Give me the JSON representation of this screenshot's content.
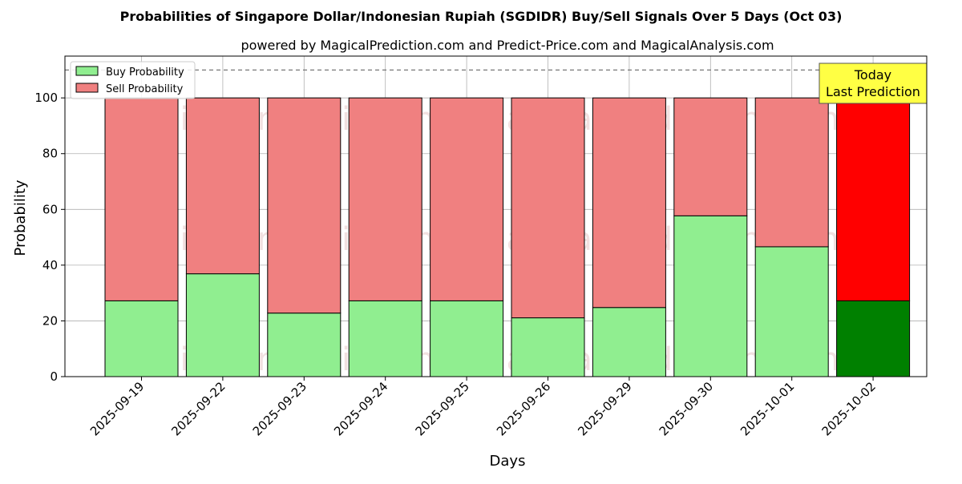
{
  "title": "Probabilities of Singapore Dollar/Indonesian Rupiah (SGDIDR) Buy/Sell Signals Over 5 Days (Oct 03)",
  "subtitle": "powered by MagicalPrediction.com and Predict-Price.com and MagicalAnalysis.com",
  "watermarks": [
    "MagicalAnalysis.com",
    "MagicalPrediction.com"
  ],
  "today_box": {
    "line1": "Today",
    "line2": "Last Prediction",
    "color": "#ffff44"
  },
  "colors": {
    "buy": "#90ee90",
    "sell": "#f08080",
    "buy_last": "#008000",
    "sell_last": "#ff0000"
  },
  "chart_data": {
    "type": "bar",
    "stacked": true,
    "xlabel": "Days",
    "ylabel": "Probability",
    "ylim": [
      0,
      115
    ],
    "yticks": [
      0,
      20,
      40,
      60,
      80,
      100
    ],
    "reference_line": 110,
    "grid": true,
    "legend_position": "upper-left",
    "categories": [
      "2025-09-19",
      "2025-09-22",
      "2025-09-23",
      "2025-09-24",
      "2025-09-25",
      "2025-09-26",
      "2025-09-29",
      "2025-09-30",
      "2025-10-01",
      "2025-10-02"
    ],
    "series": [
      {
        "name": "Buy Probability",
        "values": [
          27.2,
          36.9,
          22.8,
          27.2,
          27.2,
          21.1,
          24.8,
          57.7,
          46.6,
          27.2
        ]
      },
      {
        "name": "Sell Probability",
        "values": [
          72.8,
          63.1,
          77.2,
          72.8,
          72.8,
          78.9,
          75.2,
          42.3,
          53.4,
          72.8
        ]
      }
    ]
  }
}
